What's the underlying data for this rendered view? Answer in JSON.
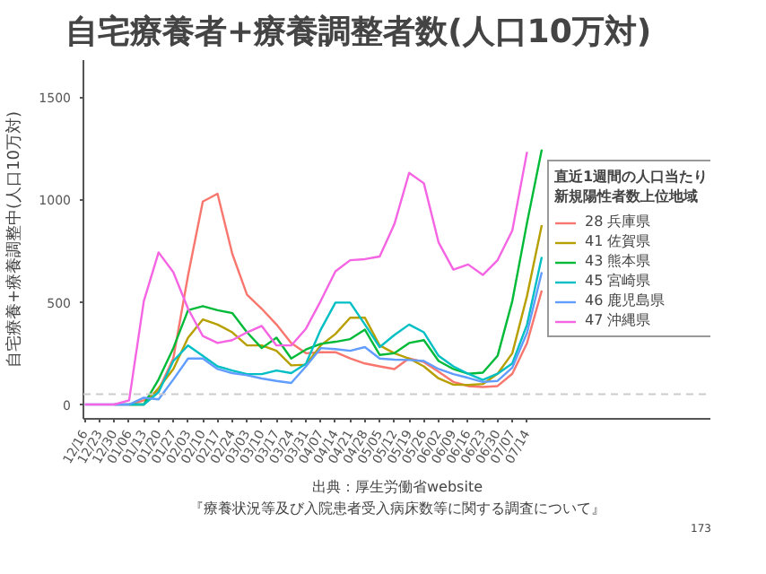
{
  "chart_data": {
    "type": "line",
    "title": "自宅療養者+療養調整者数(人口10万対)",
    "ylabel": "自宅療養+療養調整中(人口10万対)",
    "legend_title": "直近1週間の人口当たり新規陽性者数上位地域",
    "categories": [
      "12/16",
      "12/23",
      "12/30",
      "01/06",
      "01/13",
      "01/20",
      "01/27",
      "02/03",
      "02/10",
      "02/17",
      "02/24",
      "03/03",
      "03/10",
      "03/17",
      "03/24",
      "03/31",
      "04/07",
      "04/14",
      "04/21",
      "04/28",
      "05/05",
      "05/12",
      "05/19",
      "05/26",
      "06/02",
      "06/09",
      "06/16",
      "06/23",
      "06/30",
      "07/07",
      "07/14",
      null
    ],
    "series": [
      {
        "name": "28 兵庫県",
        "color": "#f8766d",
        "values": [
          null,
          null,
          0,
          0,
          20,
          70,
          225,
          630,
          990,
          1028,
          735,
          535,
          467,
          390,
          300,
          250,
          255,
          255,
          225,
          200,
          186,
          173,
          225,
          207,
          160,
          110,
          90,
          85,
          90,
          150,
          300,
          556
        ]
      },
      {
        "name": "41 佐賀県",
        "color": "#b79f00",
        "values": [
          null,
          null,
          null,
          0,
          0,
          80,
          173,
          326,
          415,
          390,
          352,
          288,
          288,
          262,
          191,
          194,
          288,
          344,
          423,
          423,
          288,
          250,
          224,
          186,
          127,
          97,
          95,
          100,
          150,
          250,
          530,
          875
        ]
      },
      {
        "name": "43 熊本県",
        "color": "#00ba38",
        "values": [
          null,
          null,
          null,
          0,
          0,
          122,
          275,
          460,
          480,
          460,
          446,
          352,
          275,
          326,
          224,
          268,
          296,
          306,
          319,
          365,
          242,
          250,
          300,
          314,
          212,
          173,
          150,
          155,
          237,
          505,
          887,
          1244
        ]
      },
      {
        "name": "45 宮崎県",
        "color": "#00bfc4",
        "values": [
          null,
          null,
          0,
          0,
          0,
          60,
          212,
          288,
          237,
          186,
          166,
          148,
          148,
          166,
          153,
          199,
          365,
          497,
          497,
          390,
          280,
          339,
          390,
          352,
          237,
          186,
          150,
          120,
          150,
          200,
          390,
          720
        ]
      },
      {
        "name": "46 鹿児島県",
        "color": "#619cff",
        "values": [
          0,
          0,
          0,
          0,
          33,
          25,
          122,
          224,
          224,
          173,
          153,
          143,
          127,
          115,
          105,
          186,
          275,
          270,
          262,
          280,
          224,
          219,
          217,
          212,
          173,
          148,
          130,
          110,
          115,
          180,
          350,
          645
        ]
      },
      {
        "name": "47 沖縄県",
        "color": "#f564e3",
        "values": [
          0,
          0,
          0,
          20,
          505,
          742,
          645,
          467,
          334,
          300,
          314,
          352,
          383,
          288,
          288,
          370,
          505,
          650,
          704,
          709,
          722,
          880,
          1130,
          1079,
          790,
          658,
          683,
          632,
          704,
          849,
          1232,
          null
        ]
      }
    ],
    "ylim": [
      -70,
      1680
    ],
    "yticks": [
      0,
      500,
      1000,
      1500
    ],
    "grid": false,
    "legend": "right",
    "ref_lines": [
      {
        "axis": "y",
        "value": 50,
        "color": "#cccccc",
        "line_style": "dashed"
      }
    ],
    "annotations": [
      "出典：厚生労働省website",
      "『療養状況等及び入院患者受入病床数等に関する調査について』",
      "173"
    ]
  }
}
